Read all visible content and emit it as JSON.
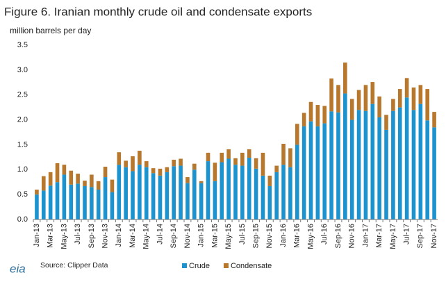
{
  "chart_data": {
    "type": "stacked_bar",
    "title": "Figure 6. Iranian monthly crude oil and condensate exports",
    "y_axis_label": "million barrels per day",
    "source": "Source: Clipper Data",
    "logo": "eia",
    "categories": [
      "Jan-13",
      null,
      "Mar-13",
      null,
      "May-13",
      null,
      "Jul-13",
      null,
      "Sep-13",
      null,
      "Nov-13",
      null,
      "Jan-14",
      null,
      "Mar-14",
      null,
      "May-14",
      null,
      "Jul-14",
      null,
      "Sep-14",
      null,
      "Nov-14",
      null,
      "Jan-15",
      null,
      "Mar-15",
      null,
      "May-15",
      null,
      "Jul-15",
      null,
      "Sep-15",
      null,
      "Nov-15",
      null,
      "Jan-16",
      null,
      "Mar-16",
      null,
      "May-16",
      null,
      "Jul-16",
      null,
      "Sep-16",
      null,
      "Nov-16",
      null,
      "Jan-17",
      null,
      "Mar-17",
      null,
      "May-17",
      null,
      "Jul-17",
      null,
      "Sep-17",
      null,
      "Nov-17"
    ],
    "series": [
      {
        "name": "Crude",
        "color": "#1c93cf",
        "values": [
          0.5,
          0.58,
          0.68,
          0.75,
          0.9,
          0.7,
          0.72,
          0.67,
          0.65,
          0.6,
          0.85,
          0.55,
          1.1,
          1.05,
          0.97,
          1.1,
          1.05,
          0.93,
          0.88,
          0.95,
          1.07,
          1.08,
          0.73,
          1.0,
          0.73,
          1.17,
          0.77,
          1.15,
          1.22,
          1.1,
          1.08,
          1.24,
          1.02,
          0.88,
          0.67,
          0.95,
          1.1,
          1.05,
          1.5,
          1.87,
          1.97,
          1.87,
          1.93,
          2.17,
          2.15,
          2.53,
          2.0,
          2.2,
          2.18,
          2.32,
          2.05,
          1.8,
          2.18,
          2.25,
          2.45,
          2.2,
          2.32,
          1.99,
          1.85
        ]
      },
      {
        "name": "Condensate",
        "color": "#b7772c",
        "values": [
          0.1,
          0.29,
          0.27,
          0.38,
          0.2,
          0.28,
          0.2,
          0.11,
          0.25,
          0.17,
          0.21,
          0.25,
          0.25,
          0.13,
          0.3,
          0.28,
          0.12,
          0.1,
          0.14,
          0.1,
          0.13,
          0.14,
          0.12,
          0.12,
          0.04,
          0.17,
          0.37,
          0.19,
          0.19,
          0.13,
          0.26,
          0.17,
          0.21,
          0.46,
          0.21,
          0.13,
          0.42,
          0.38,
          0.42,
          0.27,
          0.39,
          0.43,
          0.35,
          0.66,
          0.55,
          0.62,
          0.42,
          0.4,
          0.52,
          0.44,
          0.42,
          0.3,
          0.24,
          0.37,
          0.39,
          0.45,
          0.38,
          0.63,
          0.31
        ]
      }
    ],
    "ylim": [
      0,
      3.5
    ],
    "yticks": [
      {
        "value": 0,
        "label": "0.0"
      },
      0.5,
      {
        "value": 1,
        "label": "1.0"
      },
      1.5,
      {
        "value": 2,
        "label": "2.0"
      },
      2.5,
      {
        "value": 3,
        "label": "3.0"
      },
      3.5
    ],
    "grid": false,
    "legend": "bottom"
  }
}
